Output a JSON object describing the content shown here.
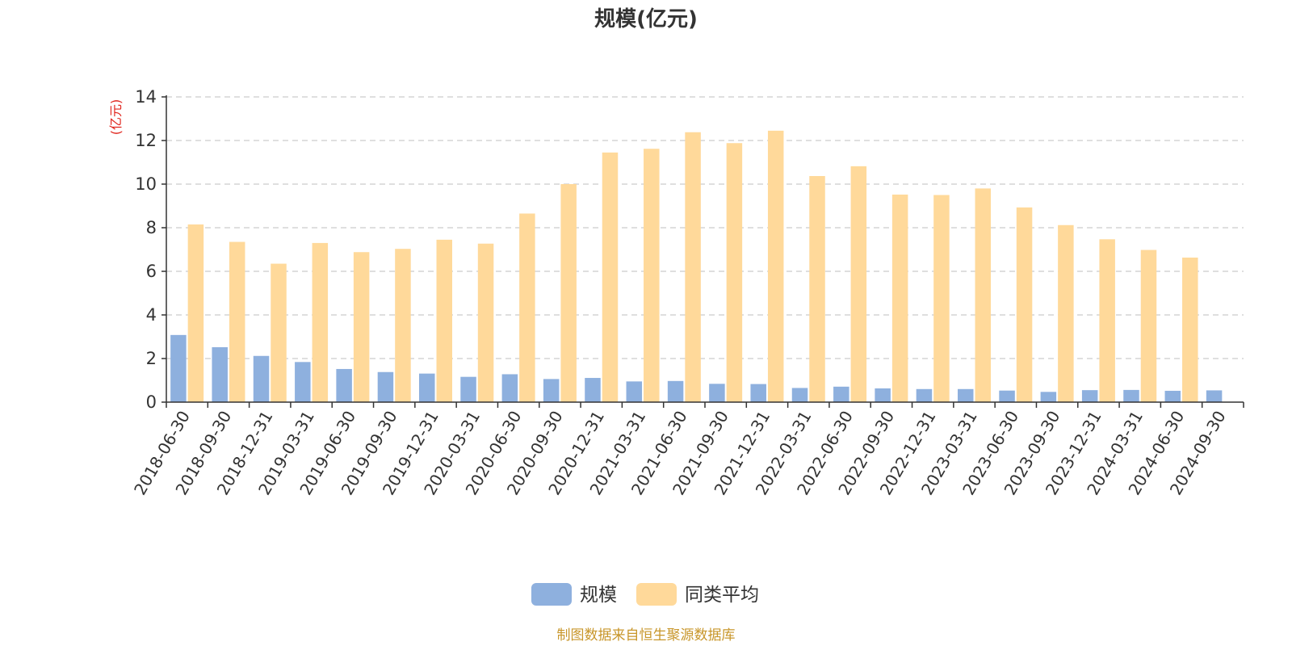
{
  "chart_data": {
    "type": "bar",
    "title": "规模(亿元)",
    "ylabel": "(亿元)",
    "xlabel": "",
    "ylim": [
      0,
      14
    ],
    "yticks": [
      0,
      2,
      4,
      6,
      8,
      10,
      12,
      14
    ],
    "grid": true,
    "legend_position": "bottom-center",
    "categories": [
      "2018-06-30",
      "2018-09-30",
      "2018-12-31",
      "2019-03-31",
      "2019-06-30",
      "2019-09-30",
      "2019-12-31",
      "2020-03-31",
      "2020-06-30",
      "2020-09-30",
      "2020-12-31",
      "2021-03-31",
      "2021-06-30",
      "2021-09-30",
      "2021-12-31",
      "2022-03-31",
      "2022-06-30",
      "2022-09-30",
      "2022-12-31",
      "2023-03-31",
      "2023-06-30",
      "2023-09-30",
      "2023-12-31",
      "2024-03-31",
      "2024-06-30",
      "2024-09-30"
    ],
    "series": [
      {
        "name": "规模",
        "color": "#8eb0de",
        "values": [
          3.08,
          2.52,
          2.12,
          1.84,
          1.52,
          1.38,
          1.31,
          1.16,
          1.28,
          1.06,
          1.11,
          0.95,
          0.97,
          0.84,
          0.83,
          0.65,
          0.71,
          0.63,
          0.6,
          0.6,
          0.53,
          0.47,
          0.55,
          0.56,
          0.52,
          0.54
        ]
      },
      {
        "name": "同类平均",
        "color": "#ffd99a",
        "values": [
          8.15,
          7.35,
          6.35,
          7.3,
          6.88,
          7.03,
          7.45,
          7.27,
          8.65,
          10.0,
          11.45,
          11.62,
          12.38,
          11.88,
          12.45,
          10.37,
          10.82,
          9.52,
          9.5,
          9.8,
          8.93,
          8.12,
          7.47,
          6.98,
          6.63,
          null
        ]
      }
    ]
  },
  "source_note": "制图数据来自恒生聚源数据库",
  "colors": {
    "unit_label": "#e0261e",
    "source_note": "#c8962a",
    "axis": "#333333"
  }
}
